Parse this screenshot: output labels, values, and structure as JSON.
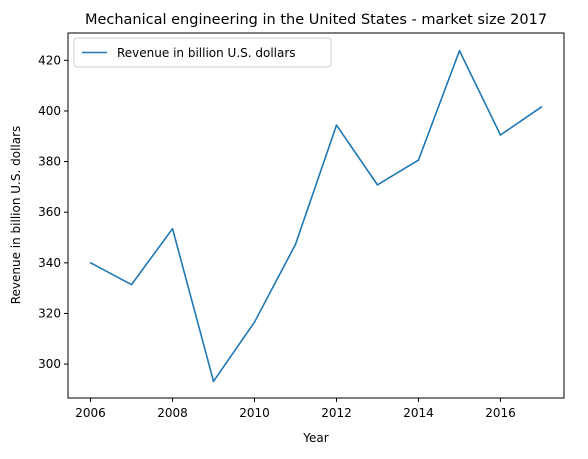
{
  "chart_data": {
    "type": "line",
    "title": "Mechanical engineering in the United States - market size 2017",
    "xlabel": "Year",
    "ylabel": "Revenue in billion U.S. dollars",
    "x": [
      2006,
      2007,
      2008,
      2009,
      2010,
      2011,
      2012,
      2013,
      2014,
      2015,
      2016,
      2017
    ],
    "series": [
      {
        "name": "Revenue in billion U.S. dollars",
        "values": [
          340.0,
          331.4,
          353.5,
          293.2,
          316.6,
          347.3,
          394.4,
          370.8,
          380.6,
          423.8,
          390.5,
          401.6
        ],
        "color": "#1f77b4"
      }
    ],
    "xlim": [
      2005.45,
      2017.55
    ],
    "ylim": [
      286.6,
      430.8
    ],
    "xticks": [
      2006,
      2008,
      2010,
      2012,
      2014,
      2016
    ],
    "yticks": [
      300,
      320,
      340,
      360,
      380,
      400,
      420
    ],
    "grid": false,
    "legend_position": "top-left"
  }
}
